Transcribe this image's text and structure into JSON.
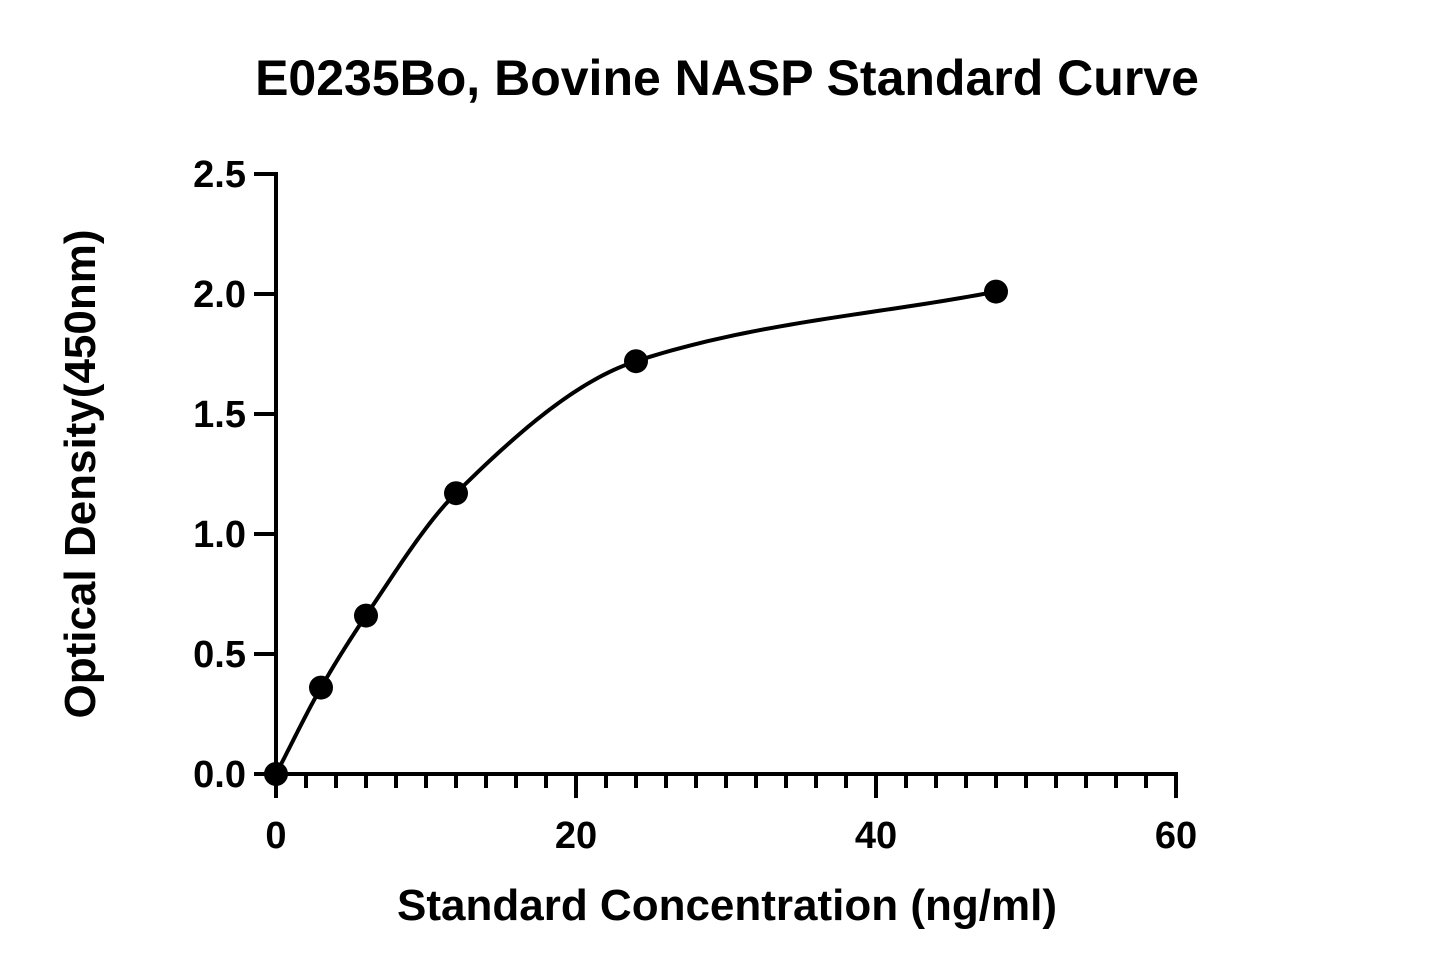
{
  "chart_data": {
    "type": "scatter",
    "title": "E0235Bo, Bovine NASP Standard Curve",
    "xlabel": "Standard Concentration (ng/ml)",
    "ylabel": "Optical Density(450nm)",
    "xlim": [
      0,
      60
    ],
    "ylim": [
      0,
      2.5
    ],
    "x_ticks": [
      "0",
      "20",
      "40",
      "60"
    ],
    "y_ticks": [
      "0.0",
      "0.5",
      "1.0",
      "1.5",
      "2.0",
      "2.5"
    ],
    "x_tick_values": [
      0,
      20,
      40,
      60
    ],
    "y_tick_values": [
      0,
      0.5,
      1.0,
      1.5,
      2.0,
      2.5
    ],
    "x_minor_step": 2,
    "grid": false,
    "series": [
      {
        "x": [
          0,
          3,
          6,
          12,
          24,
          48
        ],
        "y": [
          0.0,
          0.36,
          0.66,
          1.17,
          1.72,
          2.01
        ],
        "marker": "circle",
        "fit_curve": true,
        "color": "#000000"
      }
    ]
  }
}
